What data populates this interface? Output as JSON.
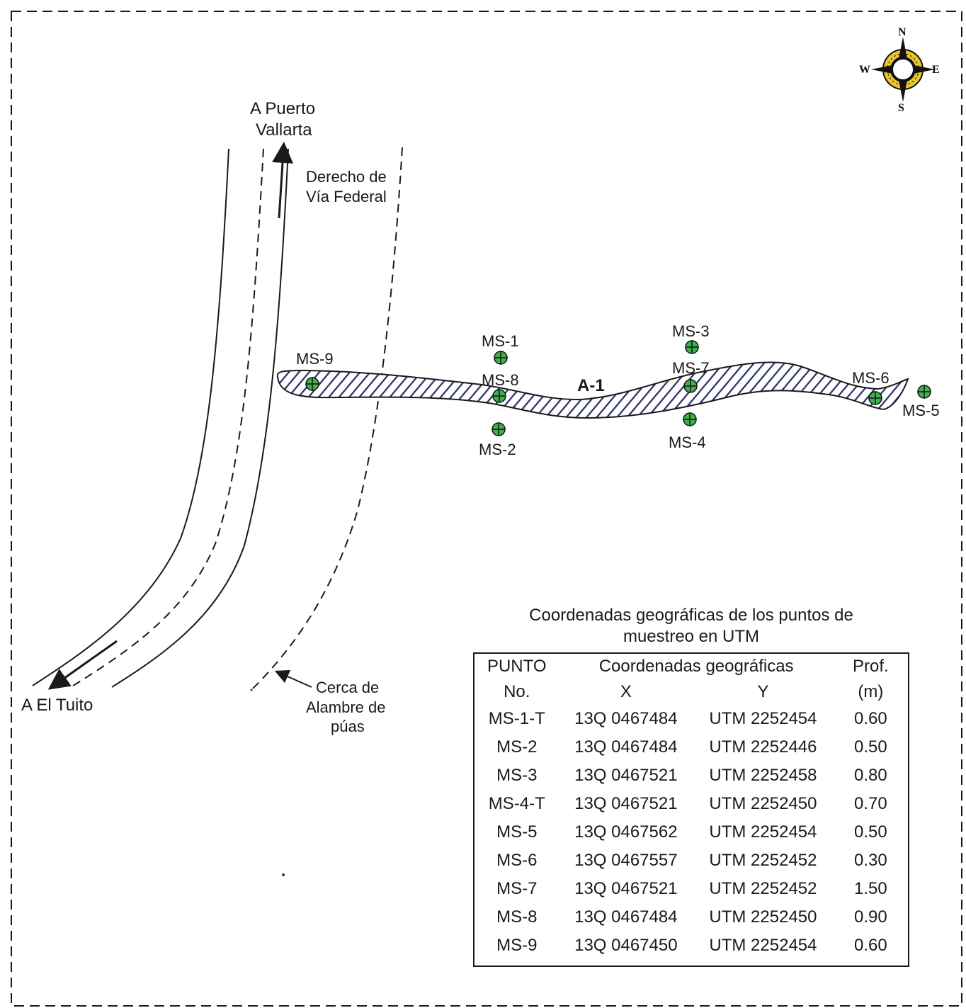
{
  "map": {
    "labels": {
      "to_puerto_vallarta_1": "A Puerto",
      "to_puerto_vallarta_2": "Vallarta",
      "federal_row_1": "Derecho de",
      "federal_row_2": "Vía Federal",
      "to_el_tuito": "A El Tuito",
      "fence_1": "Cerca de",
      "fence_2": "Alambre de",
      "fence_3": "púas",
      "area": "A-1"
    },
    "compass": {
      "n": "N",
      "s": "S",
      "e": "E",
      "w": "W"
    },
    "points": [
      {
        "label": "MS-1"
      },
      {
        "label": "MS-2"
      },
      {
        "label": "MS-3"
      },
      {
        "label": "MS-4"
      },
      {
        "label": "MS-5"
      },
      {
        "label": "MS-6"
      },
      {
        "label": "MS-7"
      },
      {
        "label": "MS-8"
      },
      {
        "label": "MS-9"
      }
    ],
    "colors": {
      "point_fill": "#3cb44b",
      "hatch": "#2b2f6b",
      "road": "#1a1a1a"
    }
  },
  "table": {
    "title_line1": "Coordenadas geográficas de los puntos de",
    "title_line2": "muestreo en UTM",
    "header1": {
      "punto": "PUNTO",
      "coords": "Coordenadas geográficas",
      "prof": "Prof."
    },
    "header2": {
      "no": "No.",
      "x": "X",
      "y": "Y",
      "unit": "(m)"
    },
    "rows": [
      {
        "punto": "MS-1-T",
        "x": "13Q 0467484",
        "y": "UTM 2252454",
        "prof": "0.60"
      },
      {
        "punto": "MS-2",
        "x": "13Q 0467484",
        "y": "UTM 2252446",
        "prof": "0.50"
      },
      {
        "punto": "MS-3",
        "x": "13Q 0467521",
        "y": "UTM 2252458",
        "prof": "0.80"
      },
      {
        "punto": "MS-4-T",
        "x": "13Q 0467521",
        "y": "UTM 2252450",
        "prof": "0.70"
      },
      {
        "punto": "MS-5",
        "x": "13Q 0467562",
        "y": "UTM 2252454",
        "prof": "0.50"
      },
      {
        "punto": "MS-6",
        "x": "13Q 0467557",
        "y": "UTM 2252452",
        "prof": "0.30"
      },
      {
        "punto": "MS-7",
        "x": "13Q 0467521",
        "y": "UTM 2252452",
        "prof": "1.50"
      },
      {
        "punto": "MS-8",
        "x": "13Q 0467484",
        "y": "UTM 2252450",
        "prof": "0.90"
      },
      {
        "punto": "MS-9",
        "x": "13Q 0467450",
        "y": "UTM 2252454",
        "prof": "0.60"
      }
    ]
  }
}
